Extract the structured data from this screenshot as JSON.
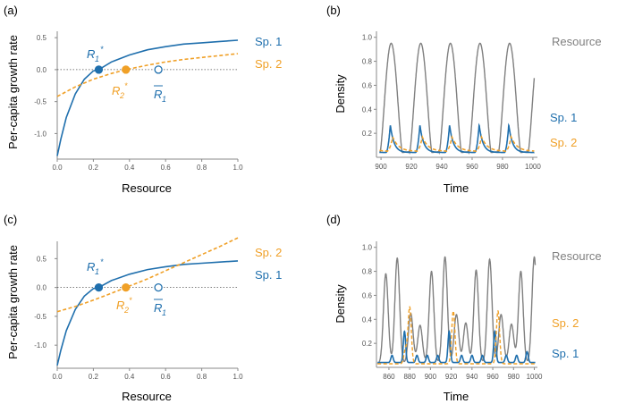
{
  "colors": {
    "sp1": "#1f6fad",
    "sp2": "#f0a027",
    "resource": "#808080",
    "axis": "#888888",
    "zero": "#555555"
  },
  "chart_data": [
    {
      "panel": "(a)",
      "type": "line",
      "xlabel": "Resource",
      "ylabel": "Per-capita growth rate",
      "xlim": [
        0,
        1
      ],
      "ylim": [
        -1.4,
        0.6
      ],
      "xticks": [
        "0.0",
        "0.2",
        "0.4",
        "0.6",
        "0.8",
        "1.0"
      ],
      "yticks": [
        "0.5",
        "0.0",
        "-0.5",
        "-1.0"
      ],
      "series": [
        {
          "name": "Sp. 1",
          "style": "solid",
          "x": [
            0.0,
            0.02,
            0.05,
            0.1,
            0.15,
            0.2,
            0.23,
            0.3,
            0.4,
            0.5,
            0.6,
            0.7,
            0.8,
            0.9,
            1.0
          ],
          "y": [
            -1.35,
            -1.09,
            -0.75,
            -0.38,
            -0.15,
            -0.02,
            0.0,
            0.12,
            0.23,
            0.31,
            0.36,
            0.4,
            0.42,
            0.44,
            0.46
          ]
        },
        {
          "name": "Sp. 2",
          "style": "dashed",
          "x": [
            0.0,
            0.1,
            0.2,
            0.3,
            0.38,
            0.5,
            0.6,
            0.7,
            0.8,
            0.9,
            1.0
          ],
          "y": [
            -0.42,
            -0.27,
            -0.15,
            -0.06,
            0.0,
            0.07,
            0.12,
            0.16,
            0.19,
            0.22,
            0.25
          ]
        }
      ],
      "points": [
        {
          "name": "R1*",
          "series": "Sp. 1",
          "x": 0.23,
          "y": 0.0,
          "filled": true
        },
        {
          "name": "R2*",
          "series": "Sp. 2",
          "x": 0.38,
          "y": 0.0,
          "filled": true
        },
        {
          "name": "R1bar",
          "series": "Sp. 1",
          "x": 0.56,
          "y": 0.0,
          "filled": false
        }
      ],
      "legend": [
        "Sp. 1",
        "Sp. 2"
      ]
    },
    {
      "panel": "(b)",
      "type": "line",
      "xlabel": "Time",
      "ylabel": "Density",
      "xlim": [
        897,
        1003
      ],
      "ylim": [
        0,
        1.05
      ],
      "xticks": [
        "900",
        "920",
        "940",
        "960",
        "980",
        "1000"
      ],
      "yticks": [
        "0.2",
        "0.4",
        "0.6",
        "0.8",
        "1.0"
      ],
      "model": "periodic, period 19.5",
      "series": [
        {
          "name": "Resource",
          "peak": 0.95,
          "trough": 0.04
        },
        {
          "name": "Sp. 1",
          "peak": 0.27,
          "trough": 0.04
        },
        {
          "name": "Sp. 2",
          "peak": 0.17,
          "trough": 0.05
        }
      ],
      "legend": [
        "Resource",
        "Sp. 1",
        "Sp. 2"
      ]
    },
    {
      "panel": "(c)",
      "type": "line",
      "xlabel": "Resource",
      "ylabel": "Per-capita growth rate",
      "xlim": [
        0,
        1
      ],
      "ylim": [
        -1.4,
        0.8
      ],
      "xticks": [
        "0.0",
        "0.2",
        "0.4",
        "0.6",
        "0.8",
        "1.0"
      ],
      "yticks": [
        "0.5",
        "0.0",
        "-0.5",
        "-1.0"
      ],
      "series": [
        {
          "name": "Sp. 1",
          "style": "solid",
          "x": [
            0.0,
            0.02,
            0.05,
            0.1,
            0.15,
            0.2,
            0.23,
            0.3,
            0.4,
            0.5,
            0.6,
            0.7,
            0.8,
            0.9,
            1.0
          ],
          "y": [
            -1.35,
            -1.09,
            -0.75,
            -0.38,
            -0.15,
            -0.02,
            0.0,
            0.12,
            0.23,
            0.31,
            0.36,
            0.4,
            0.42,
            0.44,
            0.46
          ]
        },
        {
          "name": "Sp. 2",
          "style": "dashed",
          "x": [
            0.0,
            0.1,
            0.2,
            0.3,
            0.38,
            0.5,
            0.6,
            0.7,
            0.8,
            0.9,
            1.0
          ],
          "y": [
            -0.42,
            -0.33,
            -0.22,
            -0.1,
            0.0,
            0.15,
            0.29,
            0.43,
            0.57,
            0.71,
            0.86
          ]
        }
      ],
      "points": [
        {
          "name": "R1*",
          "series": "Sp. 1",
          "x": 0.23,
          "y": 0.0,
          "filled": true
        },
        {
          "name": "R2*",
          "series": "Sp. 2",
          "x": 0.38,
          "y": 0.0,
          "filled": true
        },
        {
          "name": "R1bar",
          "series": "Sp. 1",
          "x": 0.56,
          "y": 0.0,
          "filled": false
        }
      ],
      "legend": [
        "Sp. 2",
        "Sp. 1"
      ]
    },
    {
      "panel": "(d)",
      "type": "line",
      "xlabel": "Time",
      "ylabel": "Density",
      "xlim": [
        848,
        1003
      ],
      "ylim": [
        0,
        1.05
      ],
      "xticks": [
        "860",
        "880",
        "900",
        "920",
        "940",
        "960",
        "980",
        "1000"
      ],
      "yticks": [
        "0.2",
        "0.4",
        "0.6",
        "0.8",
        "1.0"
      ],
      "series": [
        {
          "name": "Resource",
          "peaks": [
            [
              857,
              0.78
            ],
            [
              868,
              0.91
            ],
            [
              881,
              0.45
            ],
            [
              890,
              0.35
            ],
            [
              901,
              0.8
            ],
            [
              914,
              0.92
            ],
            [
              925,
              0.44
            ],
            [
              934,
              0.37
            ],
            [
              944,
              0.81
            ],
            [
              957,
              0.9
            ],
            [
              968,
              0.44
            ],
            [
              978,
              0.36
            ],
            [
              987,
              0.8
            ],
            [
              1000,
              0.92
            ]
          ]
        },
        {
          "name": "Sp. 1",
          "peaks": [
            [
              863,
              0.1
            ],
            [
              875,
              0.3
            ],
            [
              887,
              0.1
            ],
            [
              897,
              0.1
            ],
            [
              907,
              0.1
            ],
            [
              918,
              0.3
            ],
            [
              930,
              0.1
            ],
            [
              940,
              0.1
            ],
            [
              950,
              0.1
            ],
            [
              962,
              0.3
            ],
            [
              973,
              0.1
            ],
            [
              983,
              0.1
            ],
            [
              993,
              0.13
            ]
          ]
        },
        {
          "name": "Sp. 2",
          "peaks": [
            [
              876,
              0.15
            ],
            [
              880,
              0.5
            ],
            [
              922,
              0.47
            ],
            [
              965,
              0.47
            ]
          ]
        }
      ],
      "legend": [
        "Resource",
        "Sp. 2",
        "Sp. 1"
      ]
    }
  ],
  "labels": {
    "a": "(a)",
    "b": "(b)",
    "c": "(c)",
    "d": "(d)",
    "sp1": "Sp. 1",
    "sp2": "Sp. 2",
    "resource": "Resource",
    "r_letter": "R",
    "star": "*",
    "sub1": "1",
    "sub2": "2",
    "growth": "Per-capita growth rate",
    "resource_axis": "Resource",
    "density": "Density",
    "time": "Time"
  }
}
